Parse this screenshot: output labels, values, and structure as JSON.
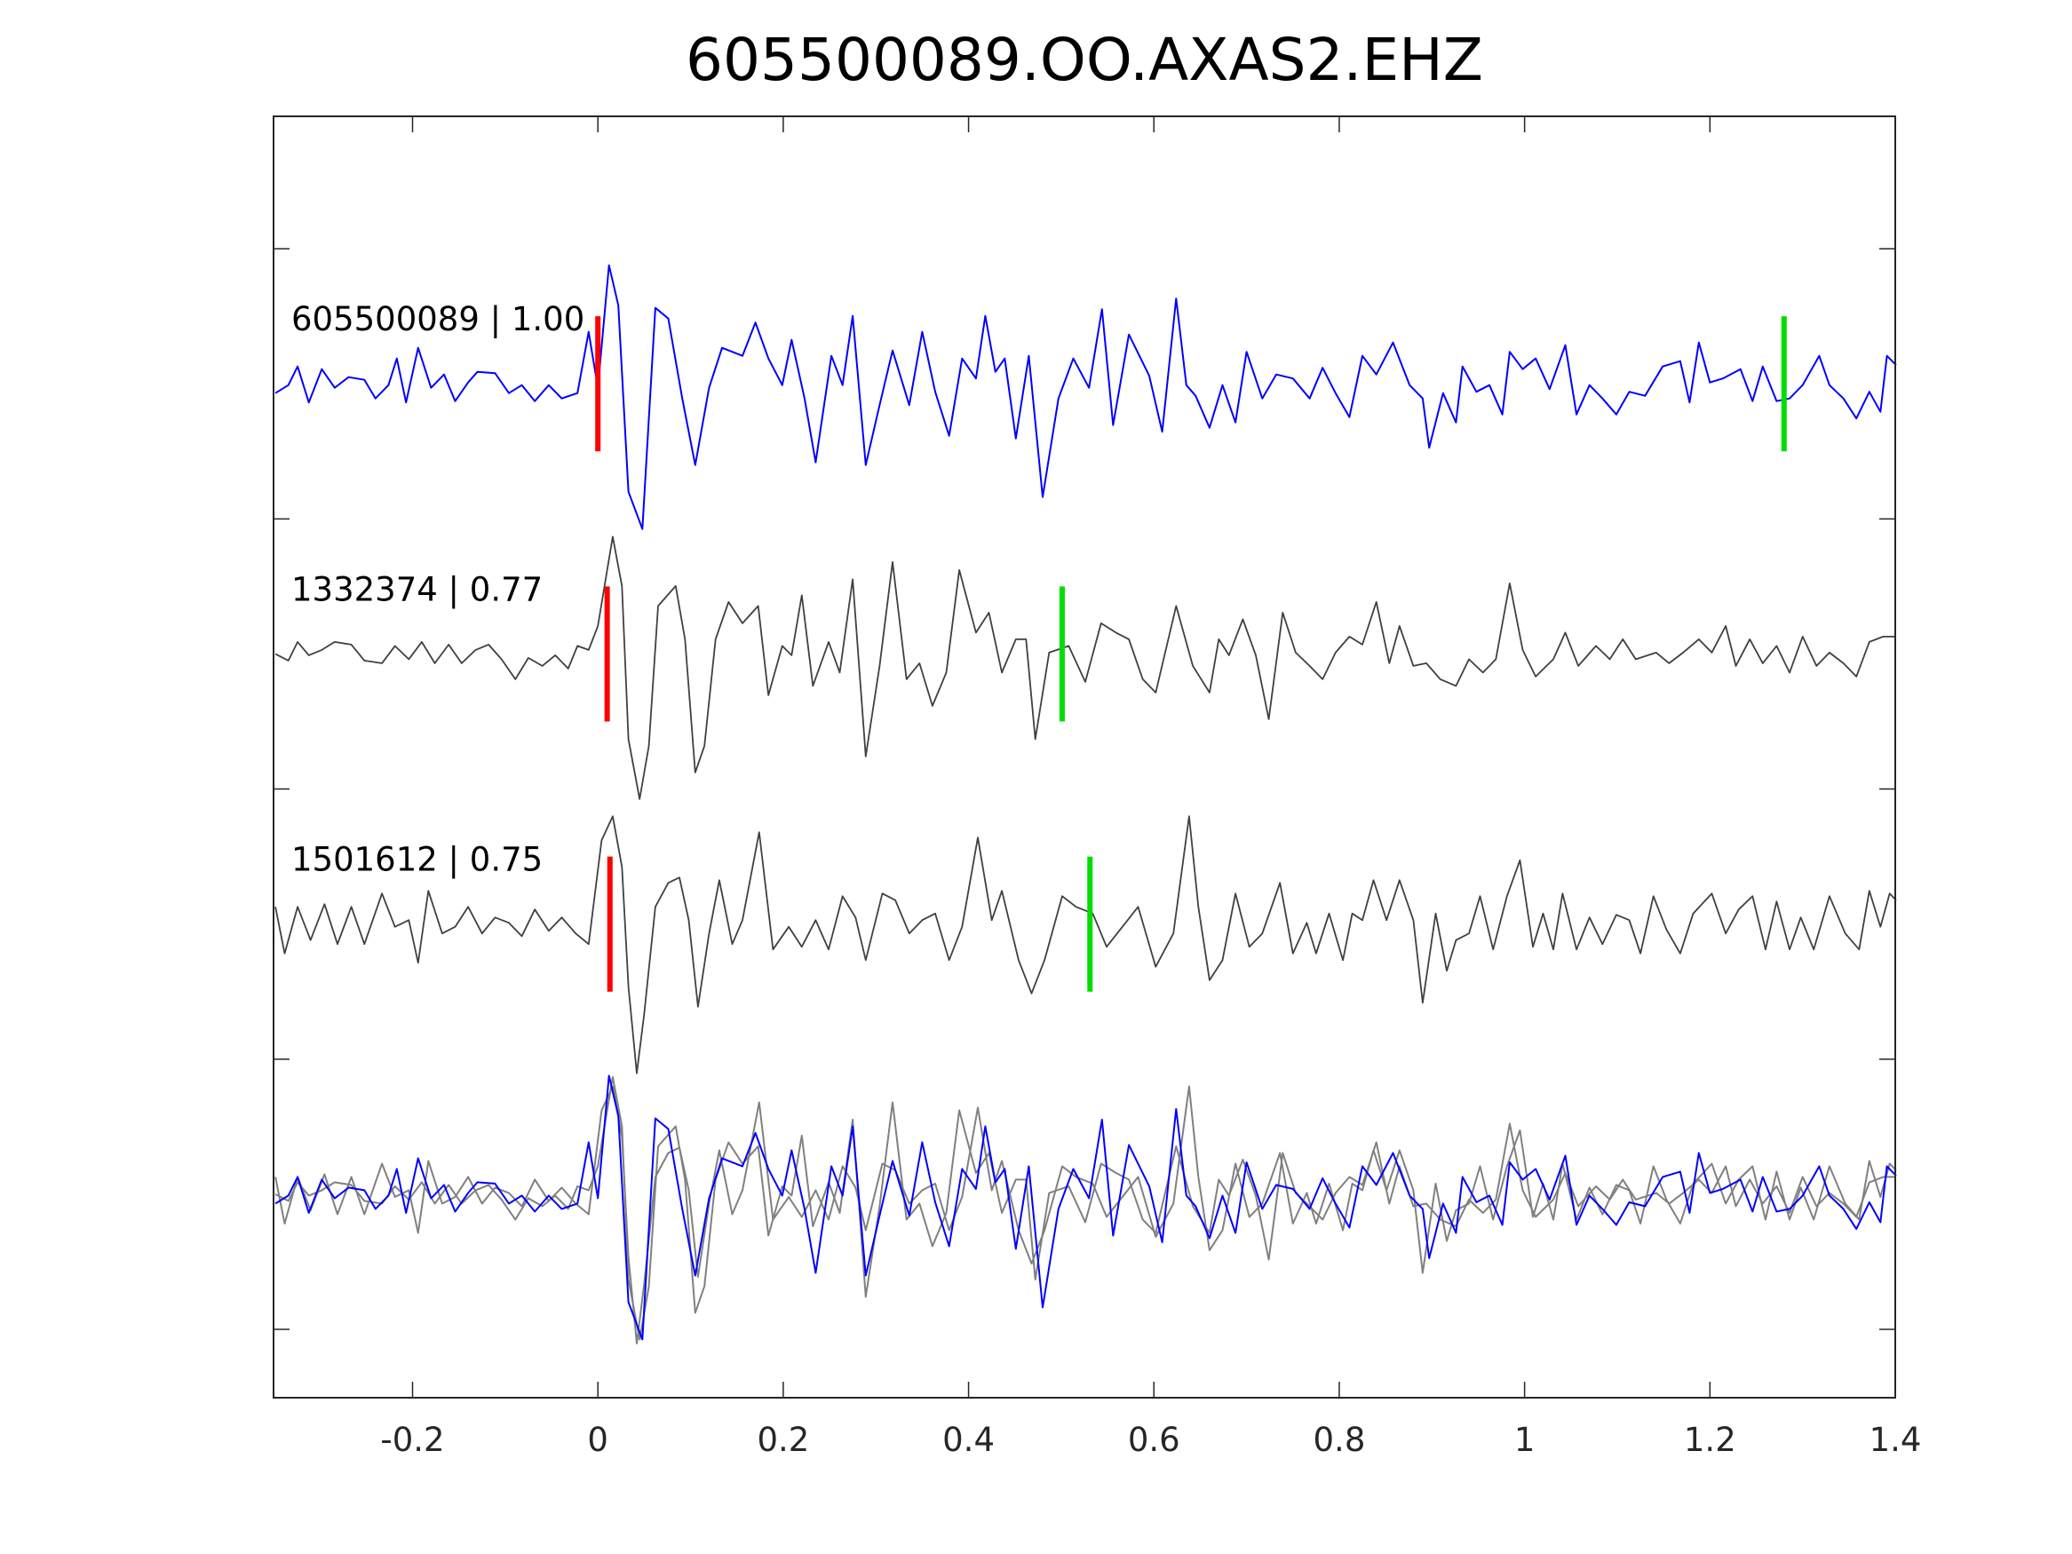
{
  "chart_data": {
    "type": "line",
    "title": "605500089.OO.AXAS2.EHZ",
    "xlabel": "",
    "ylabel": "",
    "xlim": [
      -0.35,
      1.4
    ],
    "ylim": [
      -0.253,
      4.49
    ],
    "xticks": [
      -0.2,
      0,
      0.2,
      0.4,
      0.6,
      0.8,
      1,
      1.2,
      1.4
    ],
    "xtick_labels": [
      "-0.2",
      "0",
      "0.2",
      "0.4",
      "0.6",
      "0.8",
      "1",
      "1.2",
      "1.4"
    ],
    "yticks": [
      0,
      1,
      2,
      3,
      4
    ],
    "grid": false,
    "amplitude_scale": 0.493,
    "pick_half_height": 0.25,
    "colors": {
      "template": "#0000ff",
      "event": "#404040",
      "overlay": "#808080",
      "p_pick": "#ff0000",
      "s_pick": "#00dd00",
      "axis": "#262626"
    },
    "series": [
      {
        "name": "605500089",
        "label": "605500089 | 1.00",
        "cc": 1.0,
        "offset": 3.5,
        "color": "#0000ff",
        "p_pick": 0.0,
        "s_pick": 1.28,
        "t": [
          -0.348,
          -0.334,
          -0.324,
          -0.312,
          -0.298,
          -0.284,
          -0.269,
          -0.252,
          -0.24,
          -0.226,
          -0.217,
          -0.207,
          -0.194,
          -0.18,
          -0.166,
          -0.154,
          -0.14,
          -0.13,
          -0.111,
          -0.096,
          -0.082,
          -0.068,
          -0.053,
          -0.039,
          -0.022,
          -0.01,
          0,
          0.012,
          0.022,
          0.033,
          0.048,
          0.062,
          0.076,
          0.091,
          0.105,
          0.12,
          0.134,
          0.156,
          0.17,
          0.184,
          0.199,
          0.209,
          0.223,
          0.235,
          0.252,
          0.264,
          0.275,
          0.289,
          0.304,
          0.318,
          0.336,
          0.35,
          0.364,
          0.379,
          0.393,
          0.408,
          0.418,
          0.429,
          0.439,
          0.451,
          0.465,
          0.48,
          0.497,
          0.513,
          0.53,
          0.544,
          0.556,
          0.573,
          0.595,
          0.609,
          0.624,
          0.635,
          0.645,
          0.66,
          0.674,
          0.688,
          0.7,
          0.717,
          0.732,
          0.75,
          0.768,
          0.782,
          0.796,
          0.811,
          0.825,
          0.84,
          0.858,
          0.876,
          0.89,
          0.897,
          0.912,
          0.926,
          0.933,
          0.948,
          0.962,
          0.976,
          0.984,
          0.998,
          1.012,
          1.027,
          1.044,
          1.056,
          1.07,
          1.084,
          1.099,
          1.113,
          1.13,
          1.149,
          1.168,
          1.178,
          1.188,
          1.2,
          1.214,
          1.233,
          1.246,
          1.257,
          1.272,
          1.286,
          1.3,
          1.318,
          1.329,
          1.344,
          1.358,
          1.372,
          1.384,
          1.391,
          1.401
        ],
        "v": [
          -0.07,
          -0.01,
          0.13,
          -0.14,
          0.11,
          -0.03,
          0.05,
          0.03,
          -0.11,
          -0.01,
          0.19,
          -0.14,
          0.27,
          -0.03,
          0.07,
          -0.13,
          0.01,
          0.09,
          0.08,
          -0.07,
          -0.01,
          -0.13,
          -0.01,
          -0.11,
          -0.07,
          0.39,
          -0.03,
          0.89,
          0.59,
          -0.81,
          -1.09,
          0.57,
          0.49,
          -0.11,
          -0.61,
          -0.03,
          0.27,
          0.21,
          0.46,
          0.19,
          -0.01,
          0.33,
          -0.11,
          -0.59,
          0.21,
          -0.01,
          0.51,
          -0.61,
          -0.16,
          0.25,
          -0.16,
          0.39,
          -0.06,
          -0.39,
          0.19,
          0.04,
          0.51,
          0.09,
          0.19,
          -0.41,
          0.21,
          -0.85,
          -0.11,
          0.19,
          -0.03,
          0.56,
          -0.31,
          0.37,
          0.06,
          -0.36,
          0.64,
          -0.01,
          -0.09,
          -0.33,
          -0.01,
          -0.29,
          0.24,
          -0.11,
          0.07,
          0.04,
          -0.11,
          0.12,
          -0.07,
          -0.25,
          0.21,
          0.07,
          0.31,
          -0.01,
          -0.11,
          -0.48,
          -0.07,
          -0.29,
          0.13,
          -0.06,
          -0.01,
          -0.23,
          0.24,
          0.11,
          0.19,
          -0.04,
          0.29,
          -0.23,
          -0.01,
          -0.11,
          -0.23,
          -0.06,
          -0.09,
          0.13,
          0.17,
          -0.14,
          0.31,
          0.01,
          0.04,
          0.11,
          -0.13,
          0.13,
          -0.13,
          -0.11,
          -0.01,
          0.21,
          -0.01,
          -0.11,
          -0.26,
          -0.06,
          -0.21,
          0.21,
          0.14
        ]
      },
      {
        "name": "1332374",
        "label": "1332374 | 0.77",
        "cc": 0.77,
        "offset": 2.5,
        "color": "#404040",
        "p_pick": 0.01,
        "s_pick": 0.501,
        "t": [
          -0.348,
          -0.334,
          -0.324,
          -0.312,
          -0.298,
          -0.284,
          -0.266,
          -0.252,
          -0.233,
          -0.219,
          -0.204,
          -0.19,
          -0.176,
          -0.161,
          -0.147,
          -0.132,
          -0.118,
          -0.104,
          -0.089,
          -0.075,
          -0.06,
          -0.046,
          -0.032,
          -0.022,
          -0.01,
          0,
          0.016,
          0.026,
          0.033,
          0.045,
          0.055,
          0.065,
          0.084,
          0.094,
          0.105,
          0.115,
          0.127,
          0.141,
          0.156,
          0.173,
          0.184,
          0.199,
          0.209,
          0.22,
          0.232,
          0.249,
          0.261,
          0.275,
          0.289,
          0.304,
          0.318,
          0.333,
          0.347,
          0.361,
          0.376,
          0.39,
          0.408,
          0.422,
          0.436,
          0.451,
          0.462,
          0.472,
          0.487,
          0.508,
          0.526,
          0.543,
          0.559,
          0.573,
          0.588,
          0.602,
          0.624,
          0.642,
          0.66,
          0.67,
          0.681,
          0.696,
          0.71,
          0.724,
          0.739,
          0.753,
          0.768,
          0.782,
          0.796,
          0.811,
          0.825,
          0.84,
          0.854,
          0.865,
          0.88,
          0.894,
          0.909,
          0.926,
          0.94,
          0.955,
          0.969,
          0.984,
          0.998,
          1.012,
          1.031,
          1.044,
          1.058,
          1.077,
          1.092,
          1.106,
          1.12,
          1.142,
          1.156,
          1.171,
          1.188,
          1.202,
          1.217,
          1.228,
          1.243,
          1.257,
          1.272,
          1.286,
          1.3,
          1.315,
          1.329,
          1.344,
          1.358,
          1.372,
          1.387,
          1.401
        ],
        "v": [
          0,
          -0.05,
          0.09,
          -0.01,
          0.03,
          0.09,
          0.07,
          -0.05,
          -0.07,
          0.06,
          -0.04,
          0.09,
          -0.07,
          0.07,
          -0.07,
          0.03,
          0.07,
          -0.04,
          -0.19,
          -0.03,
          -0.09,
          -0.01,
          -0.11,
          0.06,
          0.03,
          0.21,
          0.88,
          0.51,
          -0.64,
          -1.09,
          -0.69,
          0.36,
          0.51,
          0.11,
          -0.89,
          -0.69,
          0.11,
          0.39,
          0.23,
          0.36,
          -0.31,
          0.06,
          -0.01,
          0.44,
          -0.24,
          0.09,
          -0.14,
          0.56,
          -0.77,
          -0.09,
          0.69,
          -0.19,
          -0.07,
          -0.39,
          -0.14,
          0.63,
          0.16,
          0.31,
          -0.14,
          0.11,
          0.11,
          -0.64,
          0.01,
          0.06,
          -0.21,
          0.23,
          0.16,
          0.11,
          -0.19,
          -0.29,
          0.36,
          -0.09,
          -0.29,
          0.11,
          -0.01,
          0.26,
          -0.01,
          -0.49,
          0.31,
          0.01,
          -0.09,
          -0.19,
          0.01,
          0.13,
          0.07,
          0.39,
          -0.07,
          0.21,
          -0.09,
          -0.07,
          -0.19,
          -0.24,
          -0.04,
          -0.14,
          -0.04,
          0.53,
          0.03,
          -0.17,
          -0.04,
          0.16,
          -0.09,
          0.06,
          -0.04,
          0.11,
          -0.04,
          0.01,
          -0.07,
          0.01,
          0.11,
          0.01,
          0.21,
          -0.09,
          0.11,
          -0.07,
          0.06,
          -0.14,
          0.13,
          -0.09,
          0.01,
          -0.07,
          -0.17,
          0.09,
          0.13,
          0.13
        ]
      },
      {
        "name": "1501612",
        "label": "1501612 | 0.75",
        "cc": 0.75,
        "offset": 1.5,
        "color": "#404040",
        "p_pick": 0.013,
        "s_pick": 0.531,
        "t": [
          -0.348,
          -0.338,
          -0.324,
          -0.31,
          -0.295,
          -0.281,
          -0.266,
          -0.252,
          -0.233,
          -0.219,
          -0.204,
          -0.194,
          -0.183,
          -0.168,
          -0.154,
          -0.14,
          -0.125,
          -0.111,
          -0.096,
          -0.082,
          -0.068,
          -0.053,
          -0.039,
          -0.024,
          -0.01,
          0.004,
          0.016,
          0.026,
          0.033,
          0.042,
          0.05,
          0.062,
          0.076,
          0.088,
          0.098,
          0.108,
          0.12,
          0.131,
          0.145,
          0.156,
          0.174,
          0.189,
          0.206,
          0.22,
          0.235,
          0.249,
          0.264,
          0.278,
          0.289,
          0.307,
          0.321,
          0.336,
          0.35,
          0.364,
          0.379,
          0.393,
          0.41,
          0.425,
          0.436,
          0.454,
          0.468,
          0.482,
          0.501,
          0.516,
          0.534,
          0.549,
          0.566,
          0.583,
          0.602,
          0.621,
          0.638,
          0.648,
          0.66,
          0.674,
          0.688,
          0.703,
          0.717,
          0.736,
          0.75,
          0.765,
          0.775,
          0.789,
          0.804,
          0.814,
          0.825,
          0.837,
          0.851,
          0.865,
          0.88,
          0.89,
          0.904,
          0.916,
          0.926,
          0.94,
          0.952,
          0.966,
          0.981,
          0.995,
          1.009,
          1.02,
          1.031,
          1.041,
          1.056,
          1.07,
          1.084,
          1.099,
          1.113,
          1.125,
          1.139,
          1.153,
          1.168,
          1.182,
          1.202,
          1.217,
          1.231,
          1.246,
          1.26,
          1.272,
          1.286,
          1.298,
          1.312,
          1.329,
          1.346,
          1.361,
          1.372,
          1.384,
          1.394,
          1.401
        ],
        "v": [
          0.13,
          -0.22,
          0.13,
          -0.12,
          0.15,
          -0.15,
          0.13,
          -0.15,
          0.23,
          -0.02,
          0.03,
          -0.29,
          0.25,
          -0.07,
          -0.02,
          0.13,
          -0.07,
          0.05,
          0.01,
          -0.09,
          0.11,
          -0.05,
          0.05,
          -0.07,
          -0.15,
          0.63,
          0.81,
          0.43,
          -0.47,
          -1.12,
          -0.67,
          0.13,
          0.31,
          0.35,
          0.03,
          -0.62,
          -0.07,
          0.33,
          -0.15,
          0.03,
          0.69,
          -0.19,
          -0.02,
          -0.17,
          0.03,
          -0.19,
          0.21,
          0.05,
          -0.27,
          0.23,
          0.18,
          -0.07,
          0.03,
          0.08,
          -0.27,
          -0.02,
          0.65,
          0.03,
          0.25,
          -0.27,
          -0.52,
          -0.27,
          0.21,
          0.13,
          0.08,
          -0.17,
          -0.02,
          0.13,
          -0.32,
          -0.07,
          0.81,
          0.13,
          -0.42,
          -0.27,
          0.23,
          -0.17,
          -0.07,
          0.31,
          -0.22,
          0.01,
          -0.22,
          0.08,
          -0.27,
          0.08,
          0.03,
          0.33,
          0.03,
          0.33,
          0.03,
          -0.59,
          0.08,
          -0.35,
          -0.12,
          -0.07,
          0.21,
          -0.19,
          0.21,
          0.48,
          -0.17,
          0.08,
          -0.19,
          0.23,
          -0.19,
          0.05,
          -0.15,
          0.07,
          0.03,
          -0.22,
          0.21,
          -0.04,
          -0.22,
          0.08,
          0.23,
          -0.07,
          0.11,
          0.21,
          -0.19,
          0.17,
          -0.19,
          0.05,
          -0.19,
          0.21,
          -0.07,
          -0.19,
          0.25,
          -0.02,
          0.23,
          0.18
        ]
      }
    ],
    "overlay": {
      "offset": 0.5,
      "series_order": [
        1,
        2,
        0
      ]
    }
  }
}
